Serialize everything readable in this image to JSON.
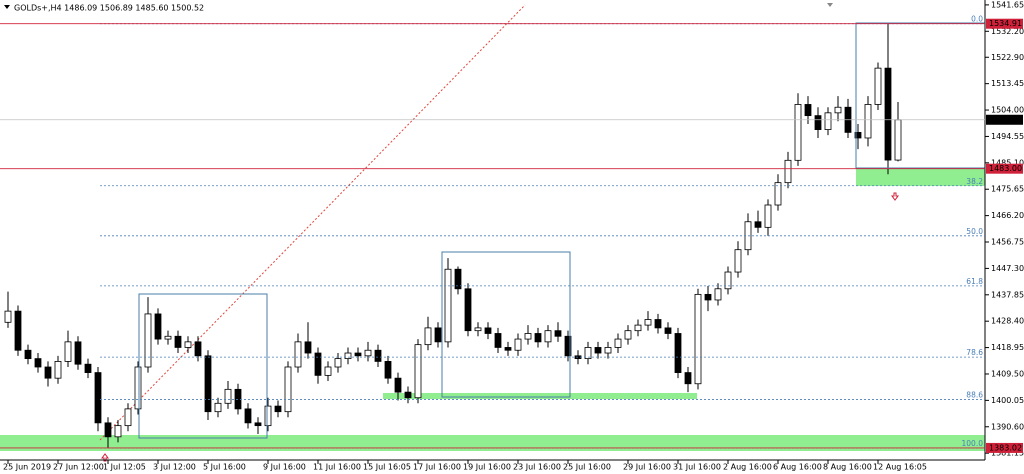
{
  "chart_data": {
    "type": "candlestick",
    "title": "GOLDs+,H4  1486.09 1506.89 1485.60 1500.52",
    "ylim": [
      1378.7,
      1543.4
    ],
    "yticks": [
      1541.65,
      {
        "value": 1532.2,
        "label": "1532.20"
      },
      {
        "value": 1522.9,
        "label": "1522.90"
      },
      1513.45,
      {
        "value": 1504.0,
        "label": "1504.00"
      },
      1494.55,
      {
        "value": 1485.1,
        "label": "1485.10"
      },
      1475.65,
      {
        "value": 1466.2,
        "label": "1466.20"
      },
      1456.75,
      {
        "value": 1447.3,
        "label": "1447.30"
      },
      1437.85,
      {
        "value": 1428.4,
        "label": "1428.40"
      },
      1418.95,
      {
        "value": 1409.5,
        "label": "1409.50"
      },
      1400.05,
      {
        "value": 1390.6,
        "label": "1390.60"
      },
      1381.15
    ],
    "xticks": [
      {
        "value": 0,
        "label": "25 Jun 2019"
      },
      {
        "value": 5,
        "label": "27 Jun 12:00"
      },
      {
        "value": 10,
        "label": "1 Jul 12:05"
      },
      {
        "value": 15,
        "label": "3 Jul 12:00"
      },
      {
        "value": 20,
        "label": "5 Jul 16:00"
      },
      {
        "value": 26,
        "label": "9 Jul 16:00"
      },
      {
        "value": 31,
        "label": "11 Jul 16:00"
      },
      {
        "value": 36,
        "label": "15 Jul 16:05"
      },
      {
        "value": 41,
        "label": "17 Jul 16:00"
      },
      {
        "value": 46,
        "label": "19 Jul 16:00"
      },
      {
        "value": 51,
        "label": "23 Jul 16:00"
      },
      {
        "value": 56,
        "label": "25 Jul 16:00"
      },
      {
        "value": 62,
        "label": "29 Jul 16:00"
      },
      {
        "value": 67,
        "label": "31 Jul 16:00"
      },
      {
        "value": 72,
        "label": "2 Aug 16:00"
      },
      {
        "value": 77,
        "label": "6 Aug 16:00"
      },
      {
        "value": 82,
        "label": "8 Aug 16:00"
      },
      {
        "value": 87,
        "label": "12 Aug 16:05"
      }
    ],
    "series": [
      {
        "up_color": "#ffffff",
        "down_color": "#000000",
        "open": [
          1428,
          1432,
          1418,
          1415,
          1412,
          1408,
          1414,
          1421,
          1413,
          1410,
          1392,
          1387,
          1391,
          1397,
          1412,
          1431,
          1422,
          1423,
          1419,
          1421,
          1416,
          1396,
          1399,
          1404,
          1397,
          1392,
          1391,
          1398,
          1396,
          1412,
          1421,
          1417,
          1409,
          1412,
          1415,
          1417,
          1416,
          1418,
          1414,
          1408,
          1403,
          1401,
          1420,
          1426,
          1421,
          1447,
          1440,
          1425,
          1426,
          1424,
          1419,
          1418,
          1422,
          1424,
          1421,
          1425,
          1423,
          1416,
          1415,
          1419,
          1417,
          1419,
          1422,
          1425,
          1427,
          1429,
          1426,
          1424,
          1410,
          1406,
          1438,
          1436,
          1440,
          1446,
          1454,
          1464,
          1462,
          1470,
          1478,
          1486,
          1506,
          1502,
          1497,
          1503,
          1505,
          1496,
          1494,
          1506,
          1519,
          1486.09
        ],
        "high": [
          1439,
          1434,
          1420,
          1417,
          1414,
          1416,
          1425,
          1423,
          1415,
          1412,
          1394,
          1393,
          1399,
          1414,
          1437,
          1433,
          1425,
          1425,
          1423,
          1423,
          1418,
          1401,
          1407,
          1406,
          1399,
          1394,
          1401,
          1400,
          1414,
          1424,
          1428,
          1419,
          1414,
          1417,
          1419,
          1419,
          1421,
          1420,
          1416,
          1410,
          1405,
          1422,
          1430,
          1428,
          1451,
          1448,
          1442,
          1428,
          1428,
          1426,
          1421,
          1424,
          1427,
          1426,
          1427,
          1428,
          1425,
          1418,
          1421,
          1421,
          1421,
          1424,
          1427,
          1429,
          1432,
          1431,
          1428,
          1426,
          1412,
          1440,
          1441,
          1442,
          1448,
          1457,
          1467,
          1468,
          1472,
          1481,
          1489,
          1510,
          1509,
          1505,
          1505,
          1509,
          1508,
          1499,
          1509,
          1521,
          1534.91,
          1506.89
        ],
        "low": [
          1426,
          1416,
          1413,
          1410,
          1405,
          1406,
          1412,
          1411,
          1408,
          1389,
          1383.02,
          1385,
          1389,
          1395,
          1410,
          1420,
          1420,
          1417,
          1417,
          1414,
          1393,
          1394,
          1397,
          1395,
          1390,
          1388,
          1389,
          1394,
          1394,
          1410,
          1415,
          1406,
          1407,
          1410,
          1413,
          1414,
          1414,
          1412,
          1406,
          1400,
          1399,
          1399,
          1418,
          1419,
          1419,
          1438,
          1423,
          1423,
          1422,
          1417,
          1416,
          1416,
          1420,
          1419,
          1419,
          1421,
          1414,
          1413,
          1413,
          1415,
          1415,
          1417,
          1420,
          1423,
          1425,
          1424,
          1422,
          1408,
          1403,
          1404,
          1432,
          1434,
          1438,
          1444,
          1452,
          1460,
          1459,
          1468,
          1476,
          1484,
          1499,
          1494,
          1495,
          1500,
          1494,
          1490,
          1491,
          1504,
          1481,
          1485.6
        ],
        "close": [
          1432,
          1418,
          1415,
          1412,
          1408,
          1414,
          1421,
          1413,
          1410,
          1392,
          1387,
          1391,
          1397,
          1412,
          1431,
          1422,
          1423,
          1419,
          1421,
          1416,
          1396,
          1399,
          1404,
          1397,
          1392,
          1391,
          1398,
          1396,
          1412,
          1421,
          1417,
          1409,
          1412,
          1415,
          1417,
          1416,
          1418,
          1414,
          1408,
          1403,
          1401,
          1420,
          1426,
          1421,
          1447,
          1440,
          1425,
          1426,
          1424,
          1419,
          1418,
          1422,
          1424,
          1421,
          1425,
          1423,
          1416,
          1415,
          1419,
          1417,
          1419,
          1422,
          1425,
          1427,
          1429,
          1426,
          1424,
          1410,
          1406,
          1438,
          1436,
          1440,
          1446,
          1454,
          1464,
          1462,
          1470,
          1478,
          1486,
          1506,
          1502,
          1497,
          1503,
          1505,
          1496,
          1494,
          1506,
          1519,
          1486.09,
          1500.52
        ]
      }
    ],
    "fib_levels": [
      {
        "label": "0.0",
        "value": 1534.91
      },
      {
        "label": "38.2",
        "value": 1476.89
      },
      {
        "label": "50.0",
        "value": 1458.97
      },
      {
        "label": "61.8",
        "value": 1441.05
      },
      {
        "label": "78.6",
        "value": 1415.53
      },
      {
        "label": "88.6",
        "value": 1400.34
      },
      {
        "label": "100.0",
        "value": 1383.02
      }
    ],
    "fib_color": "#4a7fb8",
    "price_lines": [
      {
        "label": "1534.91",
        "value": 1534.91,
        "color": "#d0213a"
      },
      {
        "label": "1500.52",
        "value": 1500.52,
        "color": "#000000"
      },
      {
        "label": "1483.00",
        "value": 1483.0,
        "color": "#d0213a"
      },
      {
        "label": "1383.02",
        "value": 1383.02,
        "color": "#d0213a"
      }
    ]
  }
}
